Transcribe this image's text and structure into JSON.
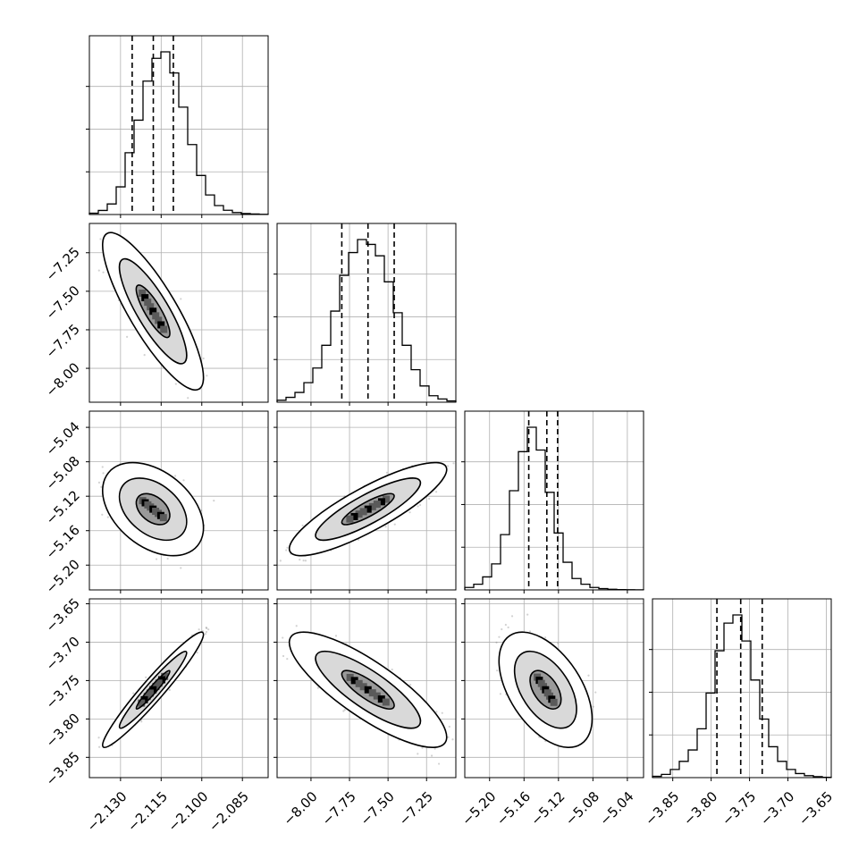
{
  "chart_data": {
    "type": "corner",
    "title": "",
    "grid": true,
    "colors": {
      "line": "#000000",
      "grid": "#b0b0b0",
      "points": "#7f7f7f",
      "fill": [
        "#ffffff",
        "#d9d9d9",
        "#9a9a9a",
        "#5a5a5a",
        "#000000"
      ]
    },
    "parameters": [
      {
        "range": [
          -2.1415,
          -2.0755
        ],
        "ticks": [
          "−2.130",
          "−2.115",
          "−2.100",
          "−2.085"
        ],
        "tick_values": [
          -2.13,
          -2.115,
          -2.1,
          -2.085
        ],
        "quantiles": [
          -2.1257,
          -2.1179,
          -2.1105
        ],
        "mean": -2.118,
        "sd": 0.0062,
        "hist_counts": [
          0.8,
          2.5,
          6.5,
          17,
          38,
          58,
          82,
          96,
          100,
          87,
          66,
          43,
          24,
          12,
          5.5,
          2.6,
          1.2,
          0.6,
          0.3,
          0.1
        ]
      },
      {
        "range": [
          -8.22,
          -7.06
        ],
        "ticks": [
          "−8.00",
          "−7.75",
          "−7.50",
          "−7.25"
        ],
        "tick_values": [
          -8.0,
          -7.75,
          -7.5,
          -7.25
        ],
        "quantiles": [
          -7.8,
          -7.63,
          -7.46
        ],
        "mean": -7.63,
        "sd": 0.17,
        "hist_counts": [
          1.2,
          3,
          6,
          12,
          21,
          35,
          56,
          78,
          92,
          100,
          97,
          90,
          74,
          55,
          35,
          20,
          10,
          4,
          2,
          0.8
        ]
      },
      {
        "range": [
          -5.2288,
          -5.0212
        ],
        "ticks": [
          "−5.20",
          "−5.16",
          "−5.12",
          "−5.08",
          "−5.04"
        ],
        "tick_values": [
          -5.2,
          -5.16,
          -5.12,
          -5.08,
          -5.04
        ],
        "quantiles": [
          -5.1545,
          -5.1335,
          -5.121
        ],
        "mean": -5.135,
        "sd": 0.018,
        "hist_counts": [
          1.5,
          3.5,
          8,
          16,
          34,
          61,
          85,
          100,
          86,
          60,
          35,
          17,
          7,
          3.5,
          1.5,
          0.8,
          0.4,
          0.2,
          0.1,
          0.05
        ]
      },
      {
        "range": [
          -3.8764,
          -3.6436
        ],
        "ticks": [
          "−3.85",
          "−3.80",
          "−3.75",
          "−3.70",
          "−3.65"
        ],
        "tick_values": [
          -3.85,
          -3.8,
          -3.75,
          -3.7,
          -3.65
        ],
        "quantiles": [
          -3.7925,
          -3.7615,
          -3.7335
        ],
        "mean": -3.762,
        "sd": 0.025,
        "hist_counts": [
          0.8,
          2,
          5,
          10,
          17,
          30,
          52,
          78,
          95,
          100,
          84,
          60,
          36,
          19,
          10,
          5,
          2.5,
          1.2,
          0.6,
          0.2
        ]
      }
    ],
    "correlations": {
      "1-0": -0.84,
      "2-0": -0.4,
      "2-1": 0.85,
      "3-0": 0.96,
      "3-1": -0.82,
      "3-2": -0.5
    }
  }
}
